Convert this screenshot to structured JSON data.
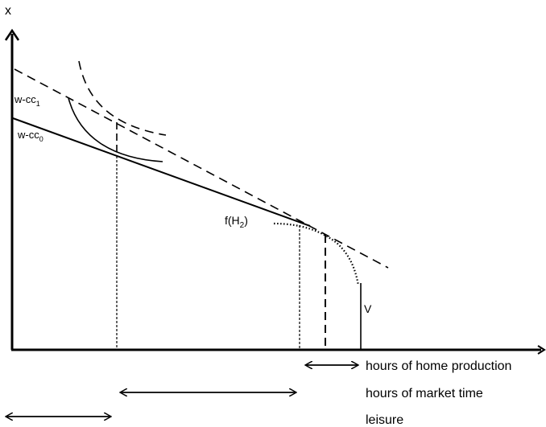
{
  "axes": {
    "y_label": "x"
  },
  "budget_lines": {
    "upper_prefix": "w-cc",
    "upper_sub": "1",
    "lower_prefix": "w-cc",
    "lower_sub": "0"
  },
  "production": {
    "label_prefix": "f(H",
    "label_sub": "2",
    "label_suffix": ")",
    "v_label": "V"
  },
  "legend": {
    "home_production": "hours of home production",
    "market_time": "hours of market time",
    "leisure": "leisure"
  }
}
